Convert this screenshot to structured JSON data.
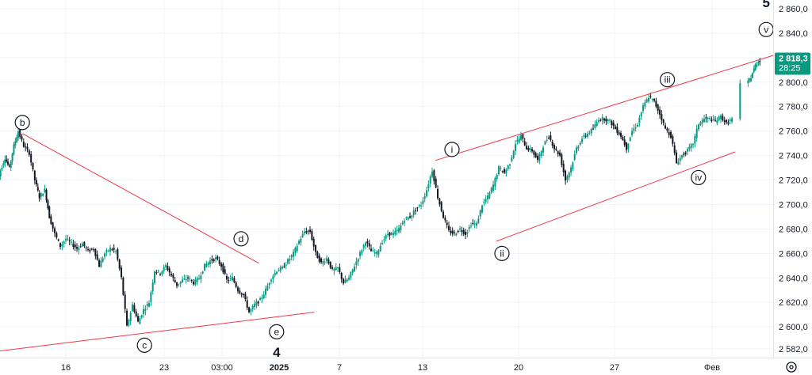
{
  "chart_data": {
    "type": "candlestick",
    "y_axis": {
      "ylim": [
        2572,
        2870
      ],
      "ticks": [
        "2 860,0",
        "2 840,0",
        "2 820,0",
        "2 800,0",
        "2 780,0",
        "2 760,0",
        "2 740,0",
        "2 720,0",
        "2 700,0",
        "2 680,0",
        "2 660,0",
        "2 640,0",
        "2 620,0",
        "2 600,0",
        "2 582,0"
      ],
      "tick_values": [
        2860,
        2840,
        2820,
        2800,
        2780,
        2760,
        2740,
        2720,
        2700,
        2680,
        2660,
        2640,
        2620,
        2600,
        2582
      ]
    },
    "x_axis": {
      "ticks": [
        "16",
        "23",
        "03:00",
        "2025",
        "7",
        "13",
        "20",
        "27",
        "Фев"
      ],
      "bold": [
        false,
        false,
        false,
        true,
        false,
        false,
        false,
        false,
        false
      ]
    },
    "current_price": {
      "price": "2 818,3",
      "countdown": "28:25",
      "value": 2818.3,
      "color": "#089981"
    },
    "grid": true,
    "candle_colors": {
      "up": "#089981",
      "down": "#131722"
    },
    "series": [
      {
        "t": 0,
        "v": 2712
      },
      {
        "t": 0.4,
        "v": 2728
      },
      {
        "t": 0.8,
        "v": 2738
      },
      {
        "t": 1.2,
        "v": 2730
      },
      {
        "t": 1.6,
        "v": 2748
      },
      {
        "t": 2.0,
        "v": 2760
      },
      {
        "t": 2.5,
        "v": 2748
      },
      {
        "t": 3.0,
        "v": 2742
      },
      {
        "t": 3.5,
        "v": 2720
      },
      {
        "t": 3.9,
        "v": 2706
      },
      {
        "t": 4.4,
        "v": 2712
      },
      {
        "t": 4.8,
        "v": 2690
      },
      {
        "t": 5.3,
        "v": 2676
      },
      {
        "t": 5.8,
        "v": 2666
      },
      {
        "t": 6.3,
        "v": 2672
      },
      {
        "t": 6.8,
        "v": 2668
      },
      {
        "t": 7.3,
        "v": 2664
      },
      {
        "t": 7.8,
        "v": 2668
      },
      {
        "t": 8.3,
        "v": 2662
      },
      {
        "t": 8.8,
        "v": 2664
      },
      {
        "t": 9.3,
        "v": 2650
      },
      {
        "t": 9.8,
        "v": 2660
      },
      {
        "t": 10.3,
        "v": 2664
      },
      {
        "t": 10.8,
        "v": 2662
      },
      {
        "t": 11.3,
        "v": 2640
      },
      {
        "t": 11.8,
        "v": 2600
      },
      {
        "t": 12.3,
        "v": 2618
      },
      {
        "t": 12.8,
        "v": 2604
      },
      {
        "t": 13.3,
        "v": 2614
      },
      {
        "t": 13.8,
        "v": 2620
      },
      {
        "t": 14.3,
        "v": 2646
      },
      {
        "t": 14.8,
        "v": 2644
      },
      {
        "t": 15.3,
        "v": 2650
      },
      {
        "t": 15.8,
        "v": 2642
      },
      {
        "t": 16.3,
        "v": 2634
      },
      {
        "t": 16.8,
        "v": 2638
      },
      {
        "t": 17.3,
        "v": 2640
      },
      {
        "t": 17.8,
        "v": 2636
      },
      {
        "t": 18.3,
        "v": 2640
      },
      {
        "t": 18.8,
        "v": 2650
      },
      {
        "t": 19.3,
        "v": 2654
      },
      {
        "t": 19.8,
        "v": 2656
      },
      {
        "t": 20.3,
        "v": 2650
      },
      {
        "t": 20.8,
        "v": 2638
      },
      {
        "t": 21.3,
        "v": 2640
      },
      {
        "t": 21.8,
        "v": 2630
      },
      {
        "t": 22.3,
        "v": 2626
      },
      {
        "t": 22.8,
        "v": 2612
      },
      {
        "t": 23.3,
        "v": 2618
      },
      {
        "t": 23.8,
        "v": 2622
      },
      {
        "t": 24.3,
        "v": 2630
      },
      {
        "t": 24.8,
        "v": 2640
      },
      {
        "t": 25.3,
        "v": 2646
      },
      {
        "t": 25.8,
        "v": 2648
      },
      {
        "t": 26.3,
        "v": 2654
      },
      {
        "t": 26.8,
        "v": 2660
      },
      {
        "t": 27.3,
        "v": 2670
      },
      {
        "t": 27.8,
        "v": 2678
      },
      {
        "t": 28.3,
        "v": 2678
      },
      {
        "t": 28.8,
        "v": 2660
      },
      {
        "t": 29.3,
        "v": 2652
      },
      {
        "t": 29.8,
        "v": 2656
      },
      {
        "t": 30.3,
        "v": 2646
      },
      {
        "t": 30.8,
        "v": 2648
      },
      {
        "t": 31.3,
        "v": 2636
      },
      {
        "t": 31.8,
        "v": 2640
      },
      {
        "t": 32.3,
        "v": 2650
      },
      {
        "t": 32.8,
        "v": 2660
      },
      {
        "t": 33.3,
        "v": 2670
      },
      {
        "t": 33.8,
        "v": 2662
      },
      {
        "t": 34.3,
        "v": 2660
      },
      {
        "t": 34.8,
        "v": 2670
      },
      {
        "t": 35.3,
        "v": 2676
      },
      {
        "t": 35.8,
        "v": 2676
      },
      {
        "t": 36.3,
        "v": 2680
      },
      {
        "t": 36.8,
        "v": 2688
      },
      {
        "t": 37.3,
        "v": 2690
      },
      {
        "t": 37.8,
        "v": 2696
      },
      {
        "t": 38.3,
        "v": 2700
      },
      {
        "t": 38.8,
        "v": 2712
      },
      {
        "t": 39.3,
        "v": 2728
      },
      {
        "t": 39.8,
        "v": 2706
      },
      {
        "t": 40.3,
        "v": 2690
      },
      {
        "t": 40.8,
        "v": 2678
      },
      {
        "t": 41.3,
        "v": 2676
      },
      {
        "t": 41.8,
        "v": 2680
      },
      {
        "t": 42.3,
        "v": 2676
      },
      {
        "t": 42.8,
        "v": 2684
      },
      {
        "t": 43.3,
        "v": 2684
      },
      {
        "t": 43.8,
        "v": 2700
      },
      {
        "t": 44.3,
        "v": 2706
      },
      {
        "t": 44.8,
        "v": 2716
      },
      {
        "t": 45.3,
        "v": 2730
      },
      {
        "t": 45.8,
        "v": 2726
      },
      {
        "t": 46.3,
        "v": 2734
      },
      {
        "t": 46.8,
        "v": 2750
      },
      {
        "t": 47.3,
        "v": 2756
      },
      {
        "t": 47.8,
        "v": 2746
      },
      {
        "t": 48.3,
        "v": 2744
      },
      {
        "t": 48.8,
        "v": 2736
      },
      {
        "t": 49.3,
        "v": 2748
      },
      {
        "t": 49.8,
        "v": 2756
      },
      {
        "t": 50.3,
        "v": 2746
      },
      {
        "t": 50.8,
        "v": 2740
      },
      {
        "t": 51.3,
        "v": 2720
      },
      {
        "t": 51.8,
        "v": 2730
      },
      {
        "t": 52.3,
        "v": 2746
      },
      {
        "t": 52.8,
        "v": 2754
      },
      {
        "t": 53.3,
        "v": 2758
      },
      {
        "t": 53.8,
        "v": 2762
      },
      {
        "t": 54.3,
        "v": 2770
      },
      {
        "t": 54.8,
        "v": 2770
      },
      {
        "t": 55.3,
        "v": 2768
      },
      {
        "t": 55.8,
        "v": 2762
      },
      {
        "t": 56.3,
        "v": 2756
      },
      {
        "t": 56.8,
        "v": 2746
      },
      {
        "t": 57.3,
        "v": 2760
      },
      {
        "t": 57.8,
        "v": 2766
      },
      {
        "t": 58.3,
        "v": 2780
      },
      {
        "t": 58.8,
        "v": 2788
      },
      {
        "t": 59.3,
        "v": 2784
      },
      {
        "t": 59.8,
        "v": 2774
      },
      {
        "t": 60.3,
        "v": 2762
      },
      {
        "t": 60.8,
        "v": 2756
      },
      {
        "t": 61.3,
        "v": 2734
      },
      {
        "t": 61.8,
        "v": 2740
      },
      {
        "t": 62.3,
        "v": 2744
      },
      {
        "t": 62.8,
        "v": 2750
      },
      {
        "t": 63.3,
        "v": 2766
      },
      {
        "t": 63.8,
        "v": 2770
      },
      {
        "t": 64.3,
        "v": 2770
      },
      {
        "t": 64.8,
        "v": 2768
      },
      {
        "t": 65.3,
        "v": 2772
      },
      {
        "t": 65.8,
        "v": 2766
      },
      {
        "t": 66.3,
        "v": 2770
      },
      {
        "t": 67.6,
        "v": 2798
      },
      {
        "t": 68.0,
        "v": 2804
      },
      {
        "t": 68.4,
        "v": 2814
      },
      {
        "t": 68.8,
        "v": 2818.3
      }
    ],
    "trend_lines": [
      {
        "from": {
          "t": 2.3,
          "v": 2758
        },
        "to": {
          "t": 23.6,
          "v": 2652
        }
      },
      {
        "from": {
          "t": 0,
          "v": 2580
        },
        "to": {
          "t": 28.6,
          "v": 2612
        }
      },
      {
        "from": {
          "t": 39.5,
          "v": 2736
        },
        "to": {
          "t": 70.0,
          "v": 2822
        }
      },
      {
        "from": {
          "t": 45.0,
          "v": 2670
        },
        "to": {
          "t": 66.5,
          "v": 2743
        }
      }
    ],
    "wave_labels": [
      {
        "text": "b",
        "t": 2.3,
        "v": 2767,
        "circled": true
      },
      {
        "text": "c",
        "t": 13.3,
        "v": 2585,
        "circled": true
      },
      {
        "text": "d",
        "t": 22.0,
        "v": 2672,
        "circled": true
      },
      {
        "text": "e",
        "t": 25.2,
        "v": 2596,
        "circled": true
      },
      {
        "text": "4",
        "t": 25.2,
        "v": 2579,
        "circled": false
      },
      {
        "text": "i",
        "t": 41.0,
        "v": 2745,
        "circled": true
      },
      {
        "text": "ii",
        "t": 45.5,
        "v": 2660,
        "circled": true
      },
      {
        "text": "iii",
        "t": 60.4,
        "v": 2802,
        "circled": true
      },
      {
        "text": "iv",
        "t": 63.2,
        "v": 2722,
        "circled": true
      },
      {
        "text": "5",
        "t": 69.3,
        "v": 2865,
        "circled": false
      },
      {
        "text": "v",
        "t": 69.3,
        "v": 2843,
        "circled": true
      }
    ],
    "line_color": "#f23645"
  },
  "toolbar": {
    "settings_icon": "settings-icon"
  }
}
